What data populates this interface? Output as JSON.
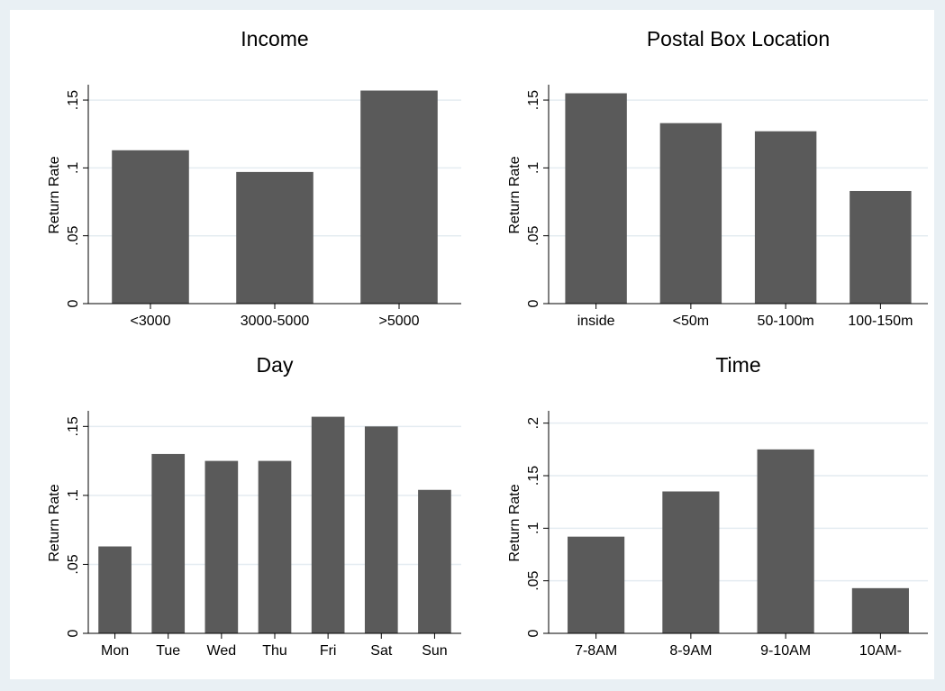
{
  "colors": {
    "bar": "#5a5a5a",
    "grid": "#e4ecf1",
    "axis": "#000000",
    "background": "#e9f0f4",
    "plot_background": "#ffffff"
  },
  "chart_data": [
    {
      "type": "bar",
      "title": "Income",
      "ylabel": "Return Rate",
      "categories": [
        "<3000",
        "3000-5000",
        ">5000"
      ],
      "values": [
        0.113,
        0.097,
        0.157
      ],
      "ylim": [
        0,
        0.16
      ],
      "yticks": [
        0,
        0.05,
        0.1,
        0.15
      ],
      "ytick_labels": [
        "0",
        ".05",
        ".1",
        ".15"
      ],
      "grid": true,
      "legend": "none"
    },
    {
      "type": "bar",
      "title": "Postal Box Location",
      "ylabel": "Return Rate",
      "categories": [
        "inside",
        "<50m",
        "50-100m",
        "100-150m"
      ],
      "values": [
        0.155,
        0.133,
        0.127,
        0.083
      ],
      "ylim": [
        0,
        0.16
      ],
      "yticks": [
        0,
        0.05,
        0.1,
        0.15
      ],
      "ytick_labels": [
        "0",
        ".05",
        ".1",
        ".15"
      ],
      "grid": true,
      "legend": "none"
    },
    {
      "type": "bar",
      "title": "Day",
      "ylabel": "Return Rate",
      "categories": [
        "Mon",
        "Tue",
        "Wed",
        "Thu",
        "Fri",
        "Sat",
        "Sun"
      ],
      "values": [
        0.063,
        0.13,
        0.125,
        0.125,
        0.157,
        0.15,
        0.104
      ],
      "ylim": [
        0,
        0.16
      ],
      "yticks": [
        0,
        0.05,
        0.1,
        0.15
      ],
      "ytick_labels": [
        "0",
        ".05",
        ".1",
        ".15"
      ],
      "grid": true,
      "legend": "none"
    },
    {
      "type": "bar",
      "title": "Time",
      "ylabel": "Return Rate",
      "categories": [
        "7-8AM",
        "8-9AM",
        "9-10AM",
        "10AM-"
      ],
      "values": [
        0.092,
        0.135,
        0.175,
        0.043
      ],
      "ylim": [
        0,
        0.21
      ],
      "yticks": [
        0,
        0.05,
        0.1,
        0.15,
        0.2
      ],
      "ytick_labels": [
        "0",
        ".05",
        ".1",
        ".15",
        ".2"
      ],
      "grid": true,
      "legend": "none"
    }
  ]
}
